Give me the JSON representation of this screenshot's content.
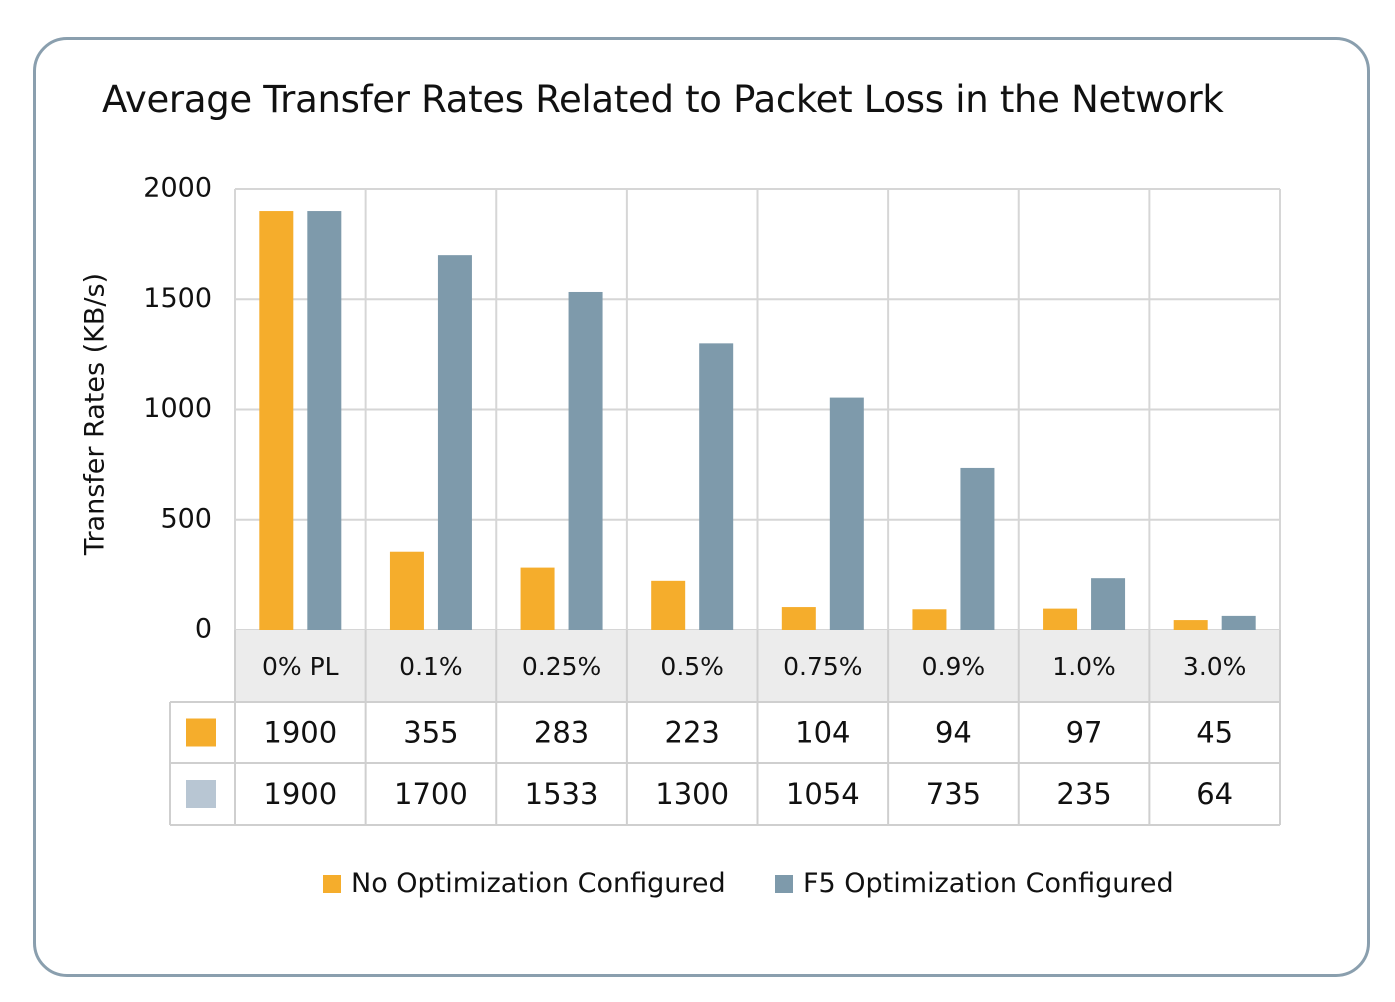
{
  "chart_data": {
    "type": "bar",
    "title": "Average Transfer Rates Related to Packet Loss in the Network",
    "ylabel": "Transfer Rates (KB/s)",
    "xlabel": "",
    "ylim": [
      0,
      2000
    ],
    "yticks": [
      "0",
      "500",
      "1000",
      "1500",
      "2000"
    ],
    "categories": [
      "0% PL",
      "0.1%",
      "0.25%",
      "0.5%",
      "0.75%",
      "0.9%",
      "1.0%",
      "3.0%"
    ],
    "grid": true,
    "legend_position": "bottom",
    "series": [
      {
        "name": "No Optimization Configured",
        "color": "#f5ad2c",
        "table_swatch_color": "#f5ad2c",
        "values": [
          1900,
          355,
          283,
          223,
          104,
          94,
          97,
          45
        ],
        "table_labels": [
          "1900",
          "355",
          "283",
          "223",
          "104",
          "94",
          "97",
          "45"
        ]
      },
      {
        "name": "F5 Optimization Configured",
        "color": "#7e9aab",
        "table_swatch_color": "#b8c6d3",
        "values": [
          1900,
          1700,
          1533,
          1300,
          1054,
          735,
          235,
          64
        ],
        "table_labels": [
          "1900",
          "1700",
          "1533",
          "1300",
          "1054",
          "735",
          "235",
          "64"
        ]
      }
    ]
  }
}
